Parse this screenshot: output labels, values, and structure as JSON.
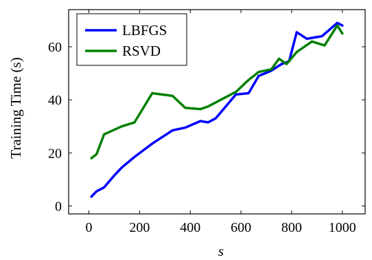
{
  "chart_data": {
    "type": "line",
    "title": "",
    "xlabel": "s",
    "ylabel": "Training Time (s)",
    "xlim": [
      -80,
      1090
    ],
    "ylim": [
      -3,
      74
    ],
    "xticks": [
      0,
      200,
      400,
      600,
      800,
      1000
    ],
    "yticks": [
      0,
      20,
      40,
      60
    ],
    "grid": false,
    "legend_position": "top-left",
    "series": [
      {
        "name": "LBFGS",
        "color": "#0000ff",
        "x": [
          10,
          30,
          60,
          100,
          130,
          180,
          250,
          330,
          380,
          440,
          470,
          500,
          580,
          630,
          670,
          720,
          760,
          790,
          820,
          860,
          920,
          980,
          1000
        ],
        "y": [
          3.5,
          5.5,
          7,
          11.5,
          14.5,
          18.5,
          23.5,
          28.5,
          29.5,
          32,
          31.5,
          33,
          42,
          42.5,
          49,
          51,
          53.5,
          54.5,
          65.5,
          63,
          64,
          69,
          68
        ]
      },
      {
        "name": "RSVD",
        "color": "#008000",
        "x": [
          10,
          30,
          60,
          130,
          180,
          250,
          330,
          380,
          440,
          470,
          580,
          630,
          670,
          720,
          750,
          780,
          820,
          880,
          930,
          980,
          1000
        ],
        "y": [
          18,
          19.5,
          27,
          30,
          31.5,
          42.5,
          41.5,
          37,
          36.5,
          37.5,
          43,
          47.5,
          50.5,
          51.5,
          55.5,
          53.5,
          58,
          62,
          60.5,
          68,
          65
        ]
      }
    ]
  }
}
